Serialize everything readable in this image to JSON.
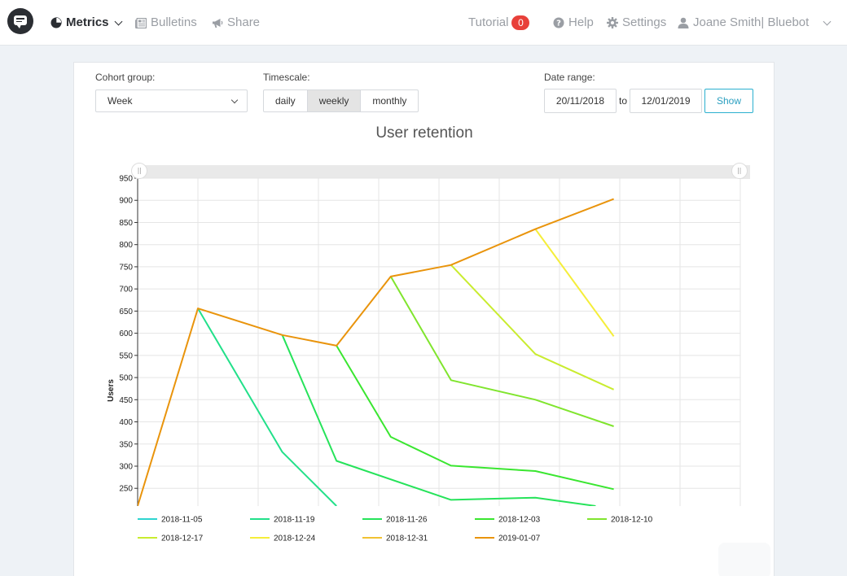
{
  "nav": {
    "metrics": "Metrics",
    "bulletins": "Bulletins",
    "share": "Share",
    "tutorial": "Tutorial",
    "tutorial_count": "0",
    "help": "Help",
    "settings": "Settings",
    "user": "Joane Smith| Bluebot"
  },
  "controls": {
    "cohort_label": "Cohort group:",
    "cohort_value": "Week",
    "timescale_label": "Timescale:",
    "timescale_options": [
      "daily",
      "weekly",
      "monthly"
    ],
    "timescale_selected": "weekly",
    "date_range_label": "Date range:",
    "date_from": "20/11/2018",
    "date_to_word": "to",
    "date_to": "12/01/2019",
    "show_button": "Show"
  },
  "colors": {
    "accent": "#2bb0cf",
    "badge": "#e8403a"
  },
  "chart_data": {
    "type": "line",
    "title": "User retention",
    "xlabel": "",
    "ylabel": "Users",
    "ylim": [
      210,
      950
    ],
    "x_index_range": [
      0,
      10
    ],
    "yticks": [
      250,
      300,
      350,
      400,
      450,
      500,
      550,
      600,
      650,
      700,
      750,
      800,
      850,
      900,
      950
    ],
    "grid": true,
    "legend_position": "bottom",
    "series": [
      {
        "name": "2018-11-05",
        "color": "#2ed4d0",
        "points": []
      },
      {
        "name": "2018-11-19",
        "color": "#22e08a",
        "points": [
          [
            1,
            656
          ],
          [
            2.4,
            332
          ],
          [
            3.3,
            210
          ]
        ]
      },
      {
        "name": "2018-11-26",
        "color": "#26e35a",
        "points": [
          [
            2.4,
            596
          ],
          [
            3.3,
            312
          ],
          [
            5.2,
            224
          ],
          [
            6.6,
            229
          ],
          [
            7.6,
            210
          ]
        ]
      },
      {
        "name": "2018-12-03",
        "color": "#3ae630",
        "points": [
          [
            3.3,
            572
          ],
          [
            4.2,
            366
          ],
          [
            5.2,
            301
          ],
          [
            6.6,
            289
          ],
          [
            7.9,
            248
          ]
        ]
      },
      {
        "name": "2018-12-10",
        "color": "#80e52e",
        "points": [
          [
            4.2,
            728
          ],
          [
            5.2,
            494
          ],
          [
            6.6,
            450
          ],
          [
            7.9,
            390
          ]
        ]
      },
      {
        "name": "2018-12-17",
        "color": "#c9ec2f",
        "points": [
          [
            5.2,
            754
          ],
          [
            6.6,
            553
          ],
          [
            7.9,
            473
          ]
        ]
      },
      {
        "name": "2018-12-24",
        "color": "#f5ee3a",
        "points": [
          [
            6.6,
            835
          ],
          [
            7.9,
            593
          ]
        ]
      },
      {
        "name": "2018-12-31",
        "color": "#f1c232",
        "points": [
          [
            7.9,
            903
          ]
        ]
      },
      {
        "name": "2019-01-07",
        "color": "#e9940c",
        "points": [
          [
            0,
            210
          ],
          [
            1,
            656
          ],
          [
            2.4,
            596
          ],
          [
            3.3,
            572
          ],
          [
            4.2,
            728
          ],
          [
            5.2,
            754
          ],
          [
            6.6,
            835
          ],
          [
            7.9,
            903
          ]
        ]
      }
    ]
  }
}
